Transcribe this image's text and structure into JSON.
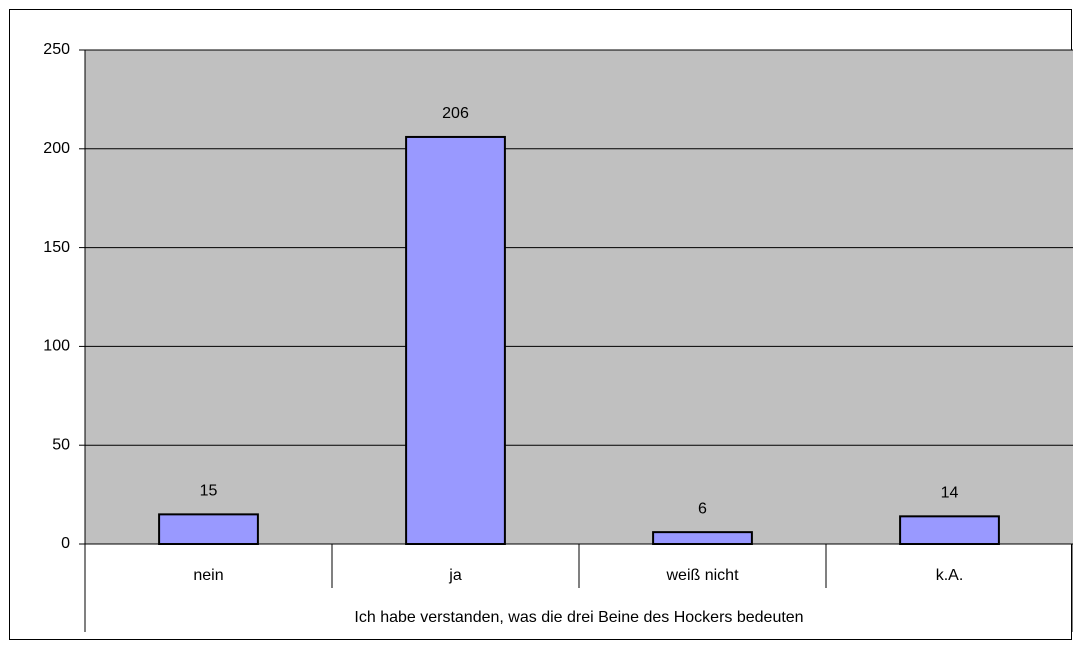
{
  "chart_data": {
    "type": "bar",
    "x_label": "Ich habe verstanden, was die drei Beine des Hockers bedeuten",
    "categories": [
      "nein",
      "ja",
      "weiß nicht",
      "k.A."
    ],
    "values": [
      15,
      206,
      6,
      14
    ],
    "color": "#9999ff",
    "ylim": [
      0,
      250
    ],
    "yticks": [
      0,
      50,
      100,
      150,
      200,
      250
    ],
    "grid": true
  }
}
